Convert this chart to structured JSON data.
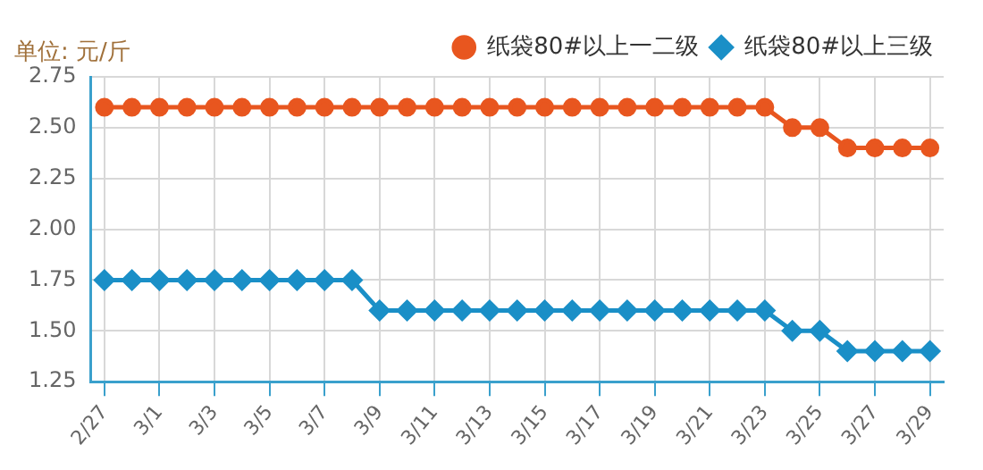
{
  "chart_data": {
    "type": "line",
    "ylabel": "单位: 元/斤",
    "categories": [
      "2/27",
      null,
      "3/1",
      null,
      "3/3",
      null,
      "3/5",
      null,
      "3/7",
      null,
      "3/9",
      null,
      "3/11",
      null,
      "3/13",
      null,
      "3/15",
      null,
      "3/17",
      null,
      "3/19",
      null,
      "3/21",
      null,
      "3/23",
      null,
      "3/25",
      null,
      "3/27",
      null,
      "3/29"
    ],
    "series": [
      {
        "name": "纸袋80#以上一二级",
        "color": "#e8561f",
        "marker": "circle",
        "values": [
          2.6,
          2.6,
          2.6,
          2.6,
          2.6,
          2.6,
          2.6,
          2.6,
          2.6,
          2.6,
          2.6,
          2.6,
          2.6,
          2.6,
          2.6,
          2.6,
          2.6,
          2.6,
          2.6,
          2.6,
          2.6,
          2.6,
          2.6,
          2.6,
          2.6,
          2.5,
          2.5,
          2.4,
          2.4,
          2.4,
          2.4
        ]
      },
      {
        "name": "纸袋80#以上三级",
        "color": "#1a8fc7",
        "marker": "diamond",
        "values": [
          1.75,
          1.75,
          1.75,
          1.75,
          1.75,
          1.75,
          1.75,
          1.75,
          1.75,
          1.75,
          1.6,
          1.6,
          1.6,
          1.6,
          1.6,
          1.6,
          1.6,
          1.6,
          1.6,
          1.6,
          1.6,
          1.6,
          1.6,
          1.6,
          1.6,
          1.5,
          1.5,
          1.4,
          1.4,
          1.4,
          1.4
        ]
      }
    ],
    "ylim": [
      1.25,
      2.75
    ],
    "yticks": [
      1.25,
      {
        "value": 1.5,
        "label": "1.50"
      },
      1.75,
      {
        "value": 2,
        "label": "2.00"
      },
      2.25,
      {
        "value": 2.5,
        "label": "2.50"
      },
      2.75
    ],
    "grid": true,
    "legend": "top right"
  }
}
